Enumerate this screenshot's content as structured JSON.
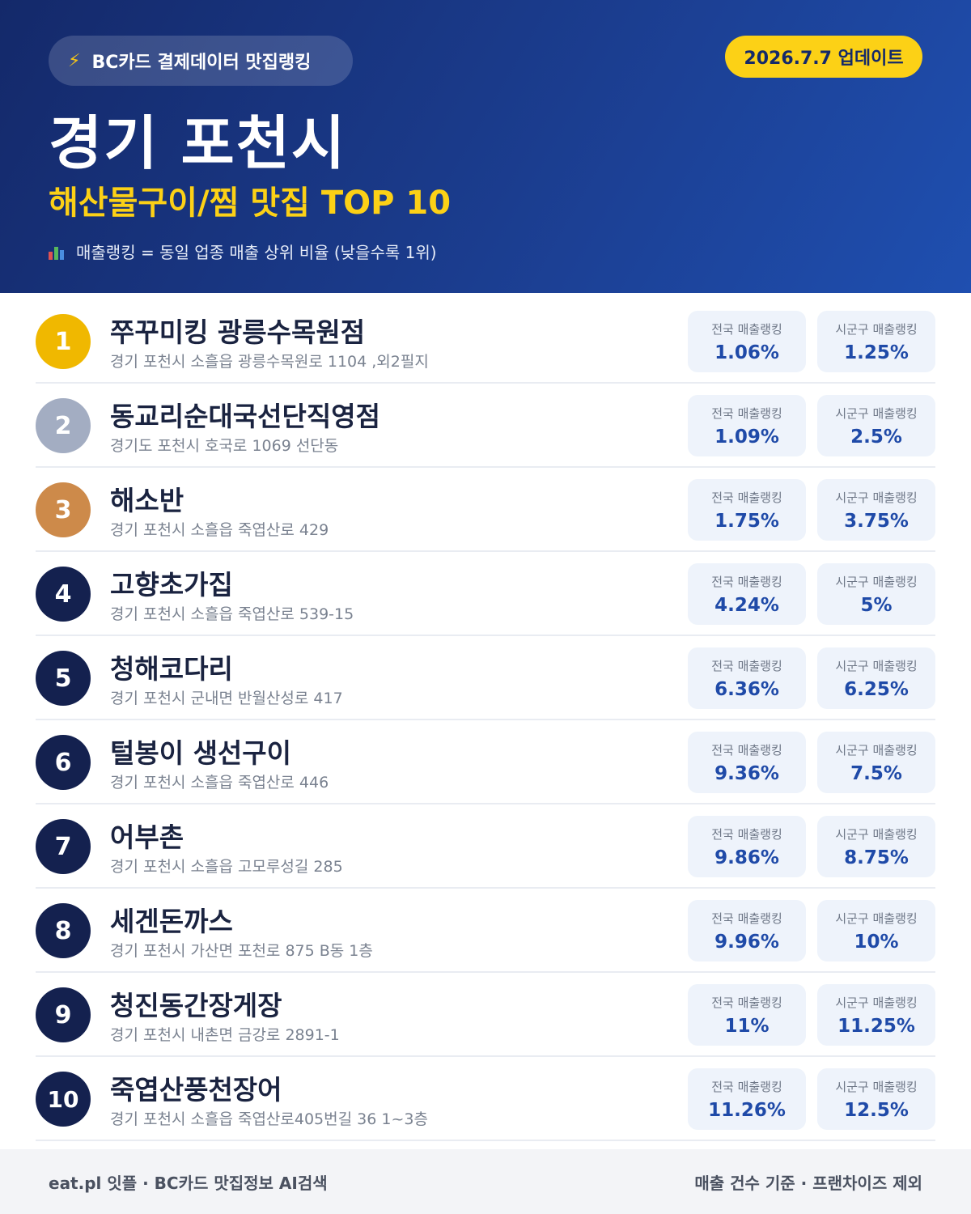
{
  "header": {
    "badge_icon": "lightning-icon",
    "badge_text": "BC카드 결제데이터 맛집랭킹",
    "update_text": "2026.7.7 업데이트",
    "city": "경기 포천시",
    "subtitle": "해산물구이/찜 맛집 TOP 10",
    "note_icon": "bar-chart-icon",
    "note": "매출랭킹 = 동일 업종 매출 상위 비율 (낮을수록 1위)"
  },
  "colors": {
    "gold": "#f0b800",
    "silver": "#a3adc2",
    "bronze": "#cd8a4a",
    "navy": "#14214f",
    "accent_yellow": "#fcd116",
    "value_blue": "#1f4aa8"
  },
  "labels": {
    "national": "전국 매출랭킹",
    "local": "시군구 매출랭킹"
  },
  "restaurants": [
    {
      "rank": "1",
      "name": "쭈꾸미킹 광릉수목원점",
      "address": "경기 포천시 소흘읍 광릉수목원로 1104 ,외2필지",
      "national": "1.06%",
      "local": "1.25%"
    },
    {
      "rank": "2",
      "name": "동교리순대국선단직영점",
      "address": "경기도 포천시 호국로 1069 선단동",
      "national": "1.09%",
      "local": "2.5%"
    },
    {
      "rank": "3",
      "name": "해소반",
      "address": "경기 포천시 소흘읍 죽엽산로 429",
      "national": "1.75%",
      "local": "3.75%"
    },
    {
      "rank": "4",
      "name": "고향초가집",
      "address": "경기 포천시 소흘읍 죽엽산로 539-15",
      "national": "4.24%",
      "local": "5%"
    },
    {
      "rank": "5",
      "name": "청해코다리",
      "address": "경기 포천시 군내면 반월산성로 417",
      "national": "6.36%",
      "local": "6.25%"
    },
    {
      "rank": "6",
      "name": "털봉이 생선구이",
      "address": "경기 포천시 소흘읍 죽엽산로 446",
      "national": "9.36%",
      "local": "7.5%"
    },
    {
      "rank": "7",
      "name": "어부촌",
      "address": "경기 포천시 소흘읍 고모루성길 285",
      "national": "9.86%",
      "local": "8.75%"
    },
    {
      "rank": "8",
      "name": "세겐돈까스",
      "address": "경기 포천시 가산면 포천로 875 B동 1층",
      "national": "9.96%",
      "local": "10%"
    },
    {
      "rank": "9",
      "name": "청진동간장게장",
      "address": "경기 포천시 내촌면 금강로 2891-1",
      "national": "11%",
      "local": "11.25%"
    },
    {
      "rank": "10",
      "name": "죽엽산풍천장어",
      "address": "경기 포천시 소흘읍 죽엽산로405번길 36 1~3층",
      "national": "11.26%",
      "local": "12.5%"
    }
  ],
  "footer": {
    "left": "eat.pl 잇플 · BC카드 맛집정보 AI검색",
    "right": "매출 건수 기준 · 프랜차이즈 제외"
  }
}
